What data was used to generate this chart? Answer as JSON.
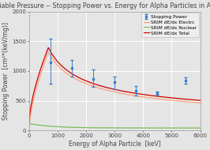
{
  "title": "Variable Pressure -- Stopping Power vs. Energy for Alpha Particles in Argon Gas",
  "xlabel": "Energy of Alpha Particle  [keV]",
  "ylabel": "Stopping Power  [cm²*(keV/mg)]",
  "xlim": [
    0,
    6000
  ],
  "ylim": [
    0,
    2000
  ],
  "xticks": [
    0,
    1000,
    2000,
    3000,
    4000,
    5000,
    6000
  ],
  "yticks": [
    0,
    500,
    1000,
    1500,
    2000
  ],
  "data_points": {
    "energy": [
      750,
      1500,
      2250,
      3000,
      3750,
      4500,
      5500
    ],
    "stopping_power": [
      1150,
      1050,
      870,
      820,
      670,
      630,
      840
    ],
    "yerr_low": [
      360,
      150,
      130,
      130,
      80,
      30,
      55
    ],
    "yerr_high": [
      390,
      140,
      150,
      80,
      80,
      30,
      55
    ]
  },
  "srim_electronic_color": "#FFA07A",
  "srim_nuclear_color": "#7CBA5A",
  "srim_total_color": "#CC0000",
  "data_point_color": "#3A7DC9",
  "background_color": "#E5E5E5",
  "grid_color": "#FFFFFF",
  "title_fontsize": 5.8,
  "label_fontsize": 5.5,
  "tick_fontsize": 5.0,
  "legend_fontsize": 4.2
}
